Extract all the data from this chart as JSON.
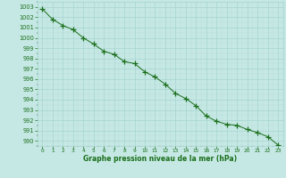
{
  "x": [
    0,
    1,
    2,
    3,
    4,
    5,
    6,
    7,
    8,
    9,
    10,
    11,
    12,
    13,
    14,
    15,
    16,
    17,
    18,
    19,
    20,
    21,
    22,
    23
  ],
  "y": [
    1002.8,
    1001.8,
    1001.2,
    1000.8,
    1000.0,
    999.4,
    998.7,
    998.4,
    997.7,
    997.5,
    996.7,
    996.2,
    995.5,
    994.6,
    994.1,
    993.4,
    992.4,
    991.9,
    991.6,
    991.5,
    991.1,
    990.8,
    990.4,
    989.6
  ],
  "line_color": "#1a6e1a",
  "marker": "+",
  "marker_size": 4,
  "marker_color": "#1a6e1a",
  "bg_color": "#c5e8e4",
  "grid_color": "#a8d4d0",
  "xlabel": "Graphe pression niveau de la mer (hPa)",
  "xlabel_color": "#1a6e1a",
  "tick_color": "#1a6e1a",
  "ylim": [
    989.5,
    1003.5
  ],
  "xlim": [
    -0.5,
    23.5
  ],
  "yticks": [
    990,
    991,
    992,
    993,
    994,
    995,
    996,
    997,
    998,
    999,
    1000,
    1001,
    1002,
    1003
  ],
  "xticks": [
    0,
    1,
    2,
    3,
    4,
    5,
    6,
    7,
    8,
    9,
    10,
    11,
    12,
    13,
    14,
    15,
    16,
    17,
    18,
    19,
    20,
    21,
    22,
    23
  ],
  "grid_major_color": "#a8d4d0",
  "grid_minor_color": "#b8deda"
}
